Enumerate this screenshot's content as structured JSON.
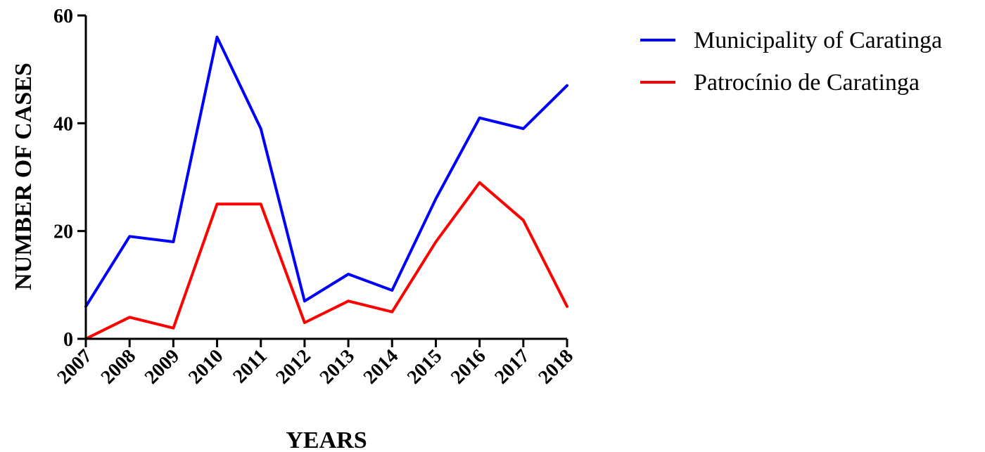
{
  "chart_data": {
    "type": "line",
    "xlabel": "YEARS",
    "ylabel": "NUMBER OF CASES",
    "x": [
      "2007",
      "2008",
      "2009",
      "2010",
      "2011",
      "2012",
      "2013",
      "2014",
      "2015",
      "2016",
      "2017",
      "2018"
    ],
    "ylim": [
      0,
      60
    ],
    "yticks": [
      "0",
      "20",
      "40",
      "60"
    ],
    "grid": false,
    "legend_position": "top-right",
    "series": [
      {
        "name": "Municipality of Caratinga",
        "color": "#0000ff",
        "values": [
          6,
          19,
          18,
          56,
          39,
          7,
          12,
          9,
          26,
          41,
          39,
          47
        ]
      },
      {
        "name": "Patrocínio de Caratinga",
        "color": "#ff0000",
        "values": [
          0,
          4,
          2,
          25,
          25,
          3,
          7,
          5,
          18,
          29,
          22,
          6
        ]
      }
    ]
  }
}
